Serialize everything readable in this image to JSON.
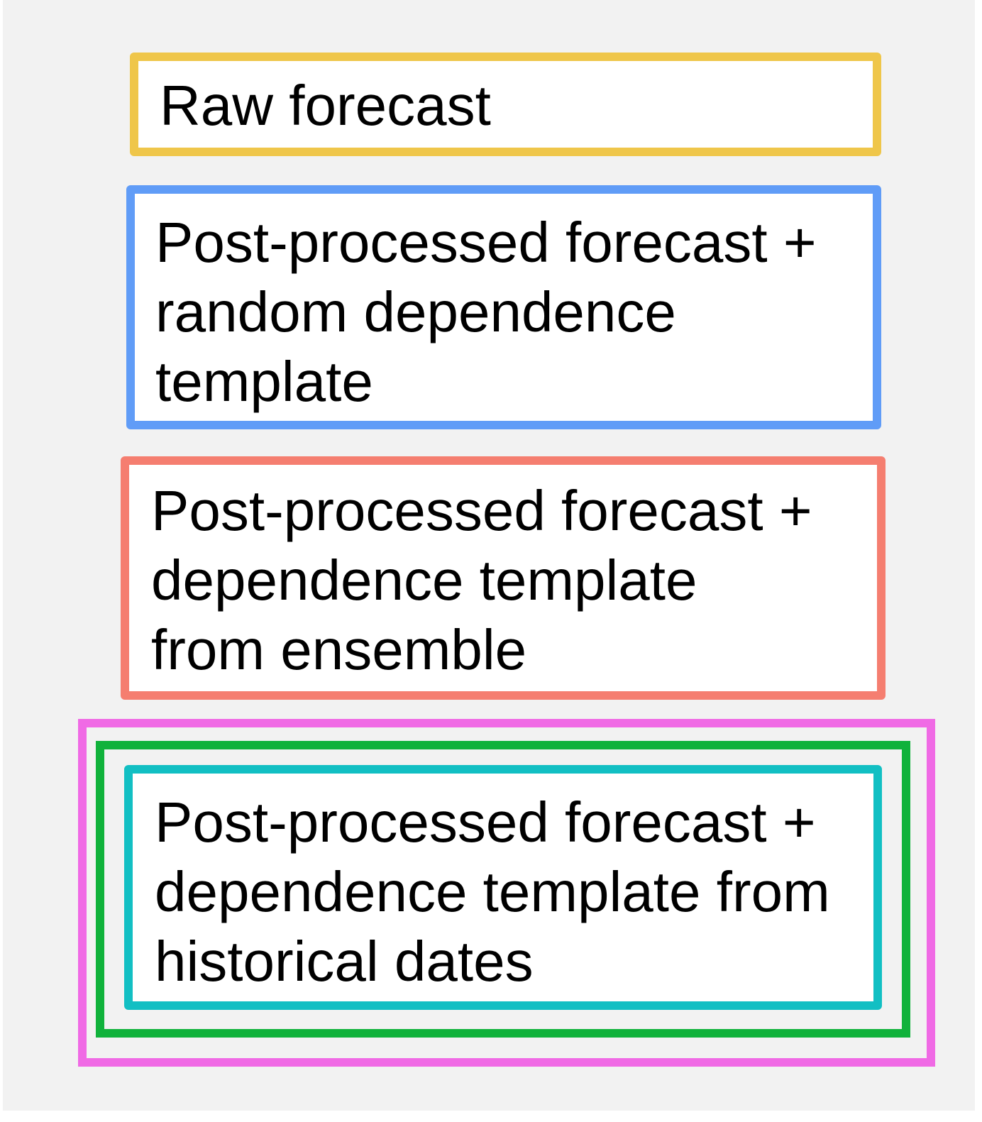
{
  "colors": {
    "background": "#f2f2f2",
    "raw_forecast": "#efc64a",
    "random_template": "#609cf7",
    "ensemble_template": "#f57e70",
    "historical_outer": "#f06ae5",
    "historical_middle": "#10b23b",
    "historical_inner": "#12bfc3"
  },
  "boxes": [
    {
      "label": "Raw forecast"
    },
    {
      "label": "Post-processed forecast +\nrandom dependence\ntemplate"
    },
    {
      "label": "Post-processed forecast +\ndependence template\nfrom ensemble"
    },
    {
      "label": "Post-processed forecast +\ndependence template from\nhistorical dates"
    }
  ]
}
